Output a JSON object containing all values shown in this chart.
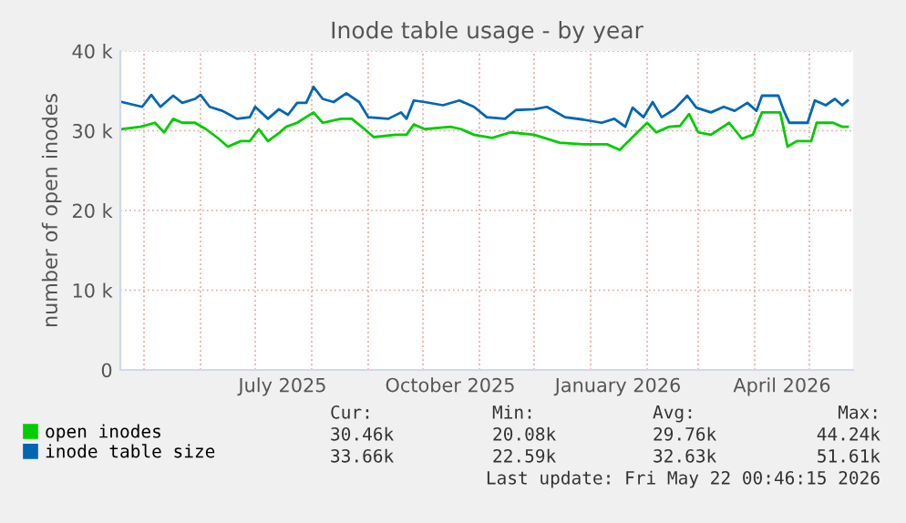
{
  "chart_data": {
    "type": "line",
    "title": "Inode table usage - by year",
    "ylabel": "number of open inodes",
    "xlim": [
      "2025-04-18",
      "2026-05-25"
    ],
    "ylim": [
      0,
      40000
    ],
    "xticks": [
      {
        "value": "2025-05-01",
        "label": null
      },
      {
        "value": "2025-06-01",
        "label": null
      },
      {
        "value": "2025-07-01",
        "label": null
      },
      {
        "value": "2025-08-01",
        "label": null
      },
      {
        "value": "2025-09-01",
        "label": null
      },
      {
        "value": "2025-10-01",
        "label": null
      },
      {
        "value": "2025-11-01",
        "label": null
      },
      {
        "value": "2025-12-01",
        "label": null
      },
      {
        "value": "2026-01-01",
        "label": null
      },
      {
        "value": "2026-02-01",
        "label": null
      },
      {
        "value": "2026-03-01",
        "label": null
      },
      {
        "value": "2026-04-01",
        "label": null
      },
      {
        "value": "2026-05-01",
        "label": null
      },
      {
        "value": "2025-07-16",
        "label": "July 2025"
      },
      {
        "value": "2025-10-16",
        "label": "October 2025"
      },
      {
        "value": "2026-01-16",
        "label": "January 2026"
      },
      {
        "value": "2026-04-16",
        "label": "April 2026"
      }
    ],
    "yticks": [
      {
        "value": 0,
        "label": "0"
      },
      {
        "value": 10000,
        "label": "10 k"
      },
      {
        "value": 20000,
        "label": "20 k"
      },
      {
        "value": 30000,
        "label": "30 k"
      },
      {
        "value": 40000,
        "label": "40 k"
      }
    ],
    "grid": true,
    "legend": "bottom",
    "line_style": "solid",
    "marker": "none",
    "series": [
      {
        "name": "open inodes",
        "color": "#00cc00",
        "x": [
          "2025-04-19",
          "2025-04-29",
          "2025-05-07",
          "2025-05-12",
          "2025-05-17",
          "2025-05-22",
          "2025-05-29",
          "2025-06-04",
          "2025-06-11",
          "2025-06-16",
          "2025-06-23",
          "2025-06-28",
          "2025-07-03",
          "2025-07-08",
          "2025-07-14",
          "2025-07-18",
          "2025-07-24",
          "2025-08-02",
          "2025-08-07",
          "2025-08-17",
          "2025-08-23",
          "2025-08-30",
          "2025-09-04",
          "2025-09-16",
          "2025-09-22",
          "2025-09-26",
          "2025-10-02",
          "2025-10-16",
          "2025-10-22",
          "2025-10-29",
          "2025-11-08",
          "2025-11-18",
          "2025-12-01",
          "2025-12-15",
          "2025-12-28",
          "2026-01-10",
          "2026-01-17",
          "2026-01-20",
          "2026-02-01",
          "2026-02-06",
          "2026-02-13",
          "2026-02-19",
          "2026-02-24",
          "2026-03-01",
          "2026-03-08",
          "2026-03-18",
          "2026-03-25",
          "2026-03-31",
          "2026-04-05",
          "2026-04-15",
          "2026-04-19",
          "2026-04-24",
          "2026-05-02",
          "2026-05-05",
          "2026-05-14",
          "2026-05-19",
          "2026-05-22"
        ],
        "values": [
          30200,
          30500,
          31000,
          29800,
          31500,
          31000,
          31000,
          30200,
          29000,
          28000,
          28700,
          28700,
          30200,
          28700,
          29700,
          30500,
          31000,
          32300,
          31000,
          31500,
          31500,
          30200,
          29200,
          29500,
          29500,
          30800,
          30200,
          30500,
          30200,
          29500,
          29100,
          29800,
          29500,
          28500,
          28300,
          28300,
          27600,
          28300,
          31000,
          29800,
          30500,
          30600,
          32100,
          29800,
          29500,
          31000,
          29000,
          29500,
          32300,
          32300,
          28000,
          28700,
          28700,
          31000,
          31000,
          30500,
          30500
        ]
      },
      {
        "name": "inode table size",
        "color": "#0066b3",
        "x": [
          "2025-04-19",
          "2025-04-30",
          "2025-05-05",
          "2025-05-10",
          "2025-05-17",
          "2025-05-22",
          "2025-05-29",
          "2025-06-01",
          "2025-06-06",
          "2025-06-13",
          "2025-06-21",
          "2025-06-28",
          "2025-07-01",
          "2025-07-08",
          "2025-07-14",
          "2025-07-19",
          "2025-07-24",
          "2025-07-29",
          "2025-08-02",
          "2025-08-07",
          "2025-08-13",
          "2025-08-20",
          "2025-08-27",
          "2025-09-01",
          "2025-09-12",
          "2025-09-19",
          "2025-09-22",
          "2025-09-26",
          "2025-10-02",
          "2025-10-12",
          "2025-10-21",
          "2025-10-29",
          "2025-11-05",
          "2025-11-15",
          "2025-11-21",
          "2025-12-01",
          "2025-12-08",
          "2025-12-18",
          "2025-12-28",
          "2026-01-07",
          "2026-01-14",
          "2026-01-20",
          "2026-01-24",
          "2026-01-30",
          "2026-02-04",
          "2026-02-09",
          "2026-02-16",
          "2026-02-23",
          "2026-02-28",
          "2026-03-08",
          "2026-03-15",
          "2026-03-21",
          "2026-03-28",
          "2026-04-02",
          "2026-04-05",
          "2026-04-14",
          "2026-04-17",
          "2026-04-20",
          "2026-04-30",
          "2026-05-04",
          "2026-05-10",
          "2026-05-15",
          "2026-05-19",
          "2026-05-22"
        ],
        "values": [
          33600,
          33000,
          34500,
          33000,
          34400,
          33500,
          34000,
          34500,
          33000,
          32500,
          31500,
          31700,
          33000,
          31500,
          32700,
          32000,
          33500,
          33500,
          35500,
          34000,
          33600,
          34700,
          33600,
          31700,
          31500,
          32300,
          31500,
          33800,
          33600,
          33200,
          33800,
          33000,
          31700,
          31500,
          32600,
          32700,
          33000,
          31700,
          31400,
          31000,
          31500,
          30500,
          32900,
          31700,
          33600,
          31700,
          32700,
          34400,
          32900,
          32300,
          33000,
          32500,
          33500,
          32500,
          34400,
          34400,
          32500,
          31000,
          31000,
          33800,
          33200,
          34000,
          33200,
          33800
        ]
      }
    ],
    "annotations": [
      "Cur:",
      "Min:",
      "Avg:",
      "Max:",
      "30.46k",
      "20.08k",
      "29.76k",
      "44.24k",
      "33.66k",
      "22.59k",
      "32.63k",
      "51.61k",
      "Last update: Fri May 22 00:46:15 2026"
    ]
  }
}
